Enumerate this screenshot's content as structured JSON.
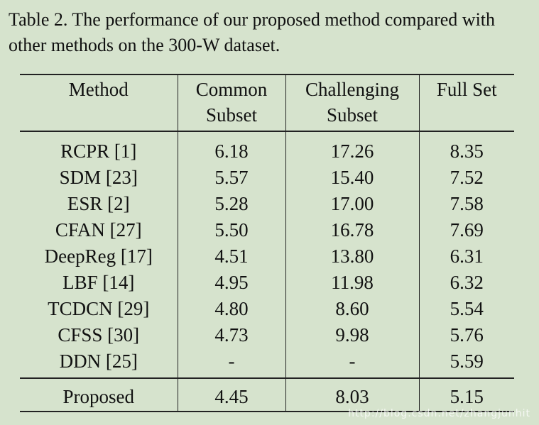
{
  "caption": "Table 2. The performance of our proposed method compared with other methods on the 300-W dataset.",
  "table": {
    "headers": [
      "Method",
      "Common Subset",
      "Challenging Subset",
      "Full Set"
    ],
    "rows": [
      [
        "RCPR [1]",
        "6.18",
        "17.26",
        "8.35"
      ],
      [
        "SDM [23]",
        "5.57",
        "15.40",
        "7.52"
      ],
      [
        "ESR [2]",
        "5.28",
        "17.00",
        "7.58"
      ],
      [
        "CFAN [27]",
        "5.50",
        "16.78",
        "7.69"
      ],
      [
        "DeepReg [17]",
        "4.51",
        "13.80",
        "6.31"
      ],
      [
        "LBF [14]",
        "4.95",
        "11.98",
        "6.32"
      ],
      [
        "TCDCN [29]",
        "4.80",
        "8.60",
        "5.54"
      ],
      [
        "CFSS [30]",
        "4.73",
        "9.98",
        "5.76"
      ],
      [
        "DDN [25]",
        "-",
        "-",
        "5.59"
      ]
    ],
    "proposed": [
      "Proposed",
      "4.45",
      "8.03",
      "5.15"
    ]
  },
  "watermark": "http://blog.csdn.net/zhangjunhit"
}
